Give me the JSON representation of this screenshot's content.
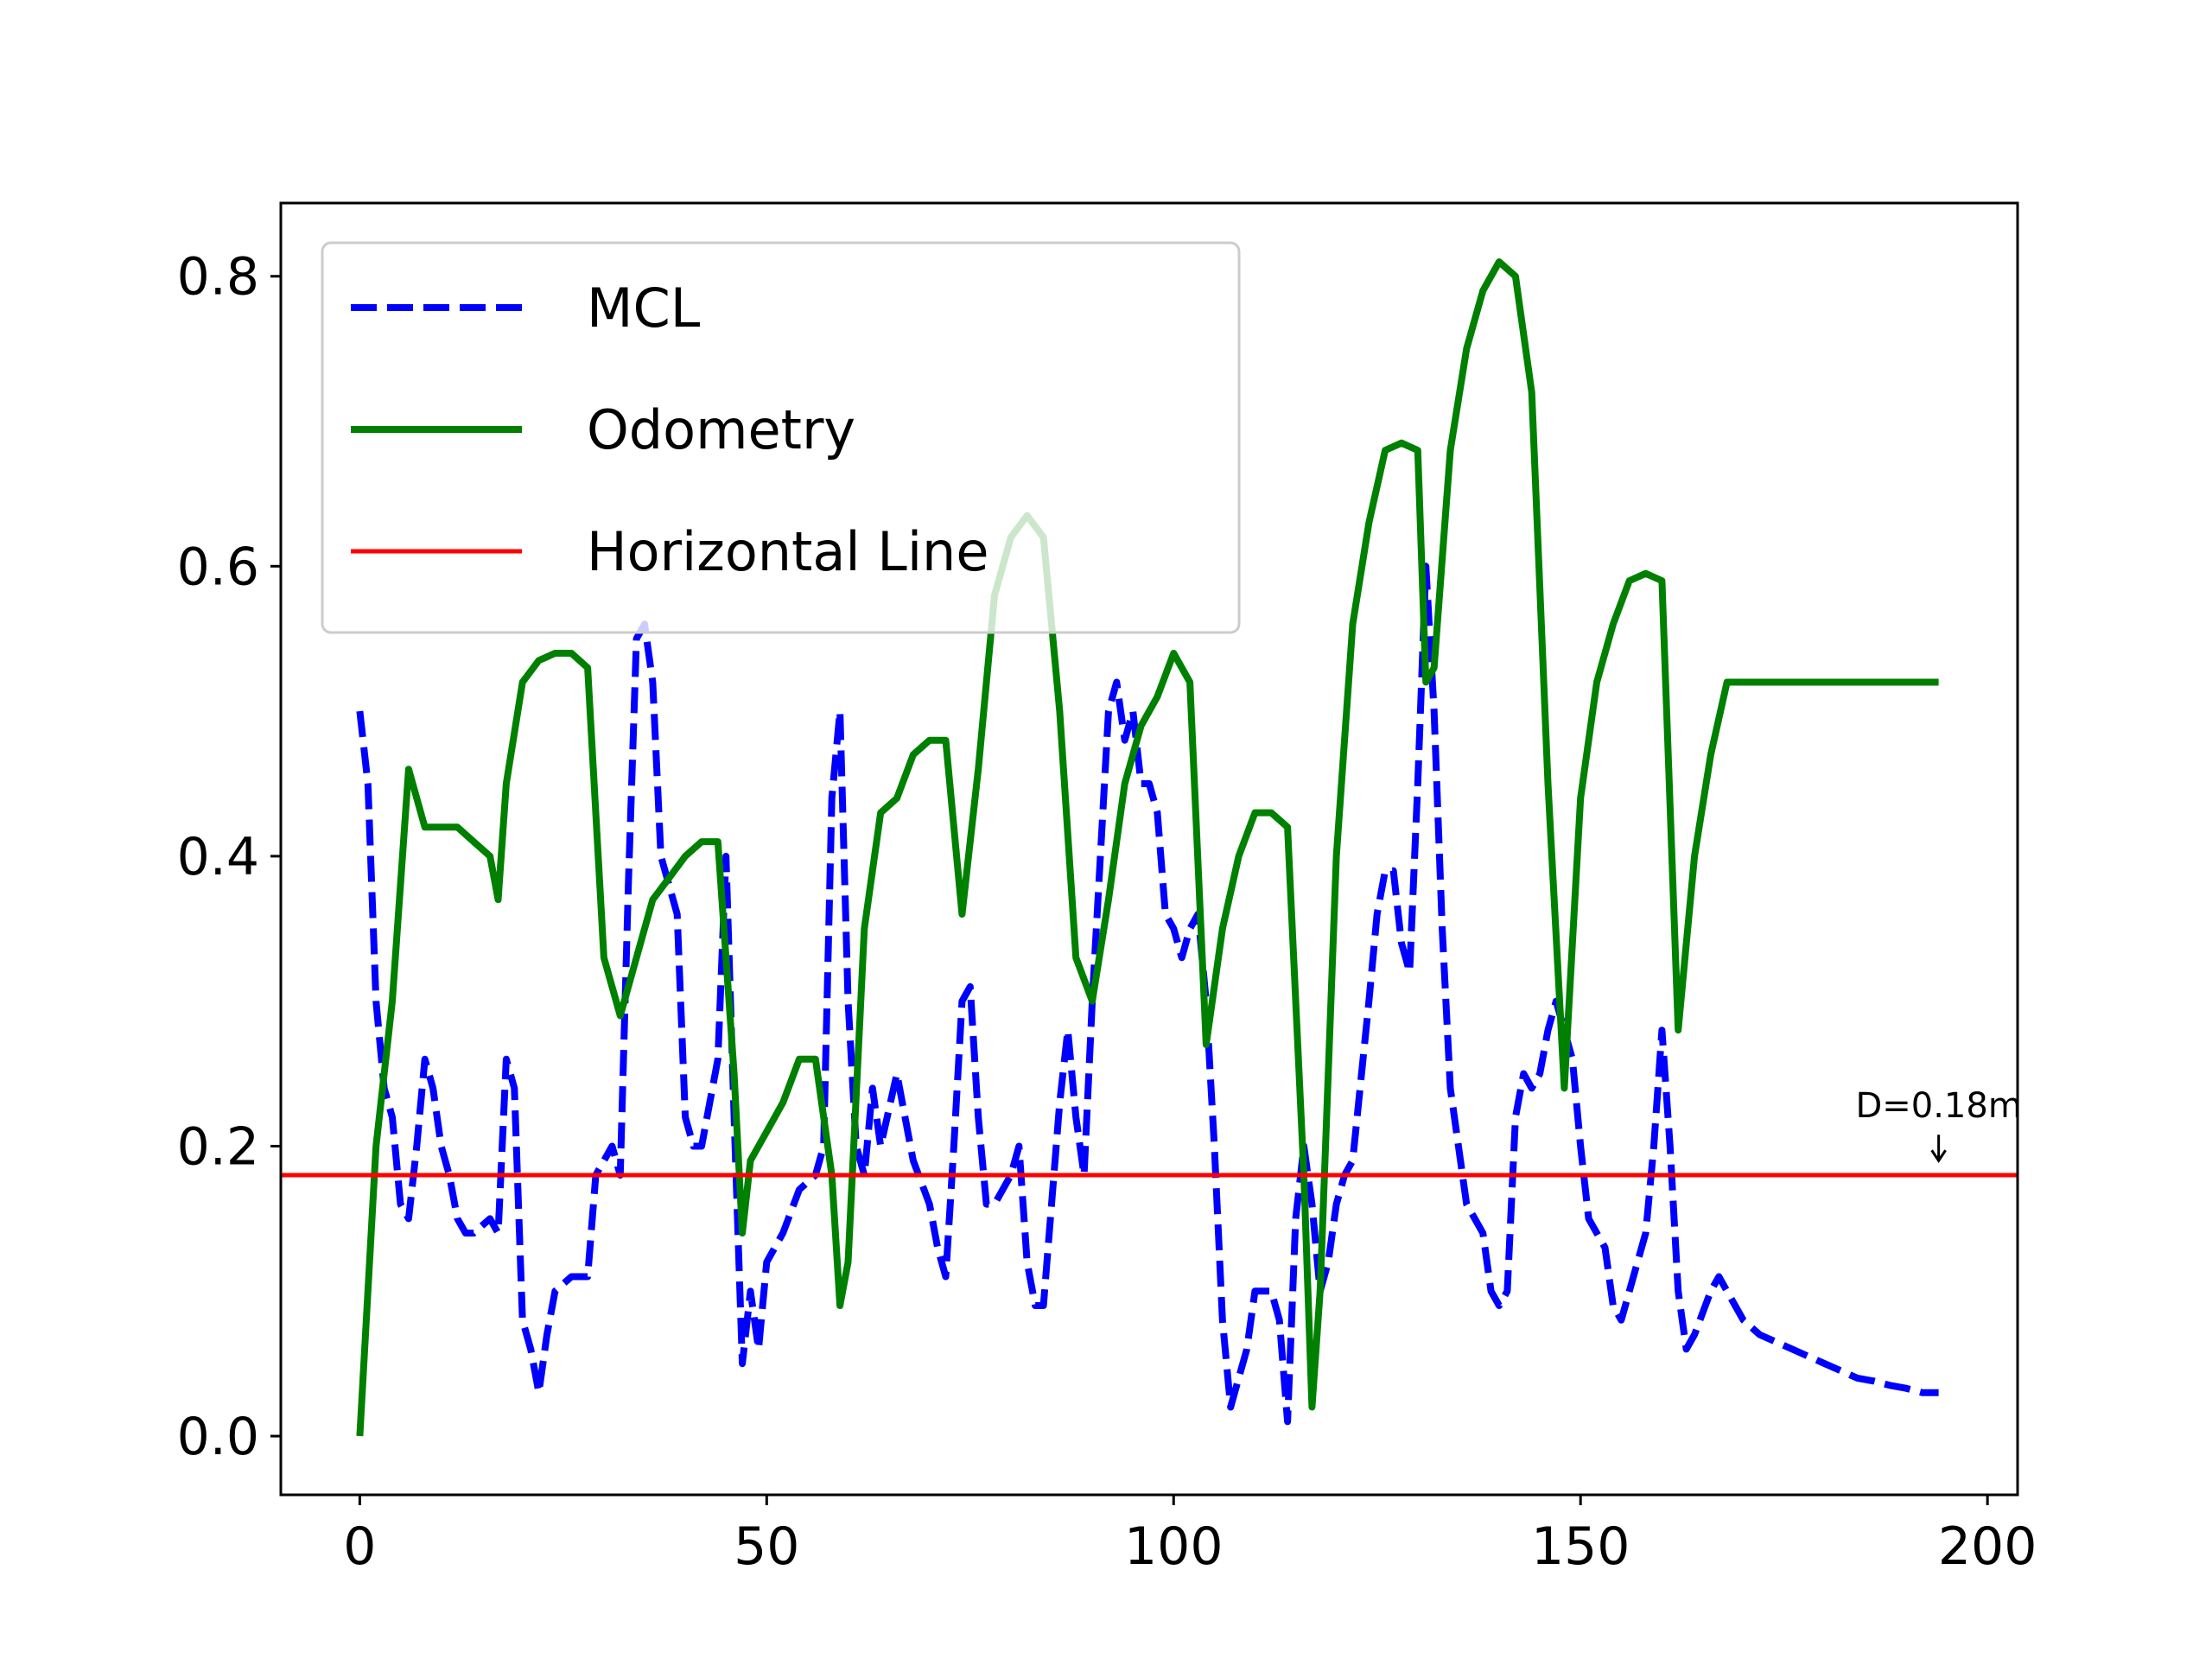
{
  "chart_data": {
    "type": "line",
    "xlim": [
      -9.7,
      203.7
    ],
    "xticks": [
      0,
      50,
      100,
      150,
      200
    ],
    "ylim": [
      -0.0405,
      0.8505
    ],
    "yticks": [
      {
        "value": 0,
        "label": "0.0"
      },
      0.2,
      0.4,
      0.6,
      0.8
    ],
    "legend": "upper left",
    "series": [
      {
        "name": "MCL",
        "color": "#0000ff",
        "style": "dashed",
        "x": [
          0,
          1,
          2,
          3,
          4,
          5,
          6,
          7,
          8,
          9,
          10,
          11,
          12,
          13,
          14,
          16,
          17,
          18,
          19,
          20,
          21,
          22,
          23,
          24,
          26,
          28,
          29,
          31,
          32,
          33,
          34,
          35,
          36,
          37,
          38,
          39,
          40,
          41,
          42,
          44,
          45,
          46,
          47,
          48,
          49,
          50,
          52,
          54,
          56,
          57,
          58,
          59,
          60,
          61,
          62,
          63,
          64,
          66,
          67,
          68,
          70,
          71,
          72,
          73,
          74,
          75,
          76,
          77,
          78,
          80,
          81,
          82,
          83,
          84,
          85,
          86,
          87,
          88,
          89,
          90,
          91,
          92,
          93,
          94,
          95,
          96,
          97,
          98,
          99,
          100,
          101,
          102,
          103,
          104,
          105,
          106,
          107,
          108,
          109,
          110,
          112,
          113,
          114,
          115,
          116,
          117,
          118,
          119,
          120,
          121,
          122,
          124,
          125,
          126,
          127,
          128,
          129,
          130,
          131,
          132,
          133,
          134,
          135,
          136,
          137,
          138,
          139,
          140,
          141,
          142,
          143,
          144,
          145,
          146,
          147,
          148,
          149,
          150,
          151,
          152,
          153,
          154,
          155,
          156,
          157,
          158,
          159,
          160,
          161,
          162,
          163,
          164,
          166,
          167,
          168,
          170,
          172,
          174,
          176,
          178,
          180,
          182,
          184,
          186,
          188,
          190,
          192,
          194
        ],
        "values": [
          0.5,
          0.45,
          0.3,
          0.24,
          0.22,
          0.16,
          0.15,
          0.2,
          0.26,
          0.24,
          0.2,
          0.18,
          0.15,
          0.14,
          0.14,
          0.15,
          0.14,
          0.26,
          0.24,
          0.08,
          0.06,
          0.03,
          0.07,
          0.1,
          0.11,
          0.11,
          0.18,
          0.2,
          0.18,
          0.38,
          0.55,
          0.56,
          0.52,
          0.4,
          0.38,
          0.36,
          0.22,
          0.2,
          0.2,
          0.26,
          0.4,
          0.22,
          0.05,
          0.1,
          0.06,
          0.12,
          0.14,
          0.17,
          0.18,
          0.2,
          0.44,
          0.5,
          0.3,
          0.2,
          0.18,
          0.24,
          0.2,
          0.25,
          0.22,
          0.19,
          0.16,
          0.13,
          0.11,
          0.2,
          0.3,
          0.31,
          0.22,
          0.16,
          0.16,
          0.18,
          0.2,
          0.12,
          0.09,
          0.09,
          0.16,
          0.23,
          0.28,
          0.22,
          0.18,
          0.3,
          0.4,
          0.5,
          0.52,
          0.48,
          0.5,
          0.45,
          0.45,
          0.43,
          0.36,
          0.35,
          0.33,
          0.35,
          0.36,
          0.3,
          0.2,
          0.08,
          0.02,
          0.04,
          0.06,
          0.1,
          0.1,
          0.08,
          0.01,
          0.15,
          0.2,
          0.16,
          0.1,
          0.12,
          0.16,
          0.18,
          0.19,
          0.3,
          0.36,
          0.39,
          0.39,
          0.34,
          0.32,
          0.45,
          0.6,
          0.5,
          0.35,
          0.24,
          0.2,
          0.16,
          0.15,
          0.14,
          0.1,
          0.09,
          0.1,
          0.22,
          0.25,
          0.24,
          0.25,
          0.28,
          0.3,
          0.28,
          0.26,
          0.2,
          0.15,
          0.14,
          0.13,
          0.09,
          0.08,
          0.1,
          0.12,
          0.14,
          0.2,
          0.28,
          0.2,
          0.1,
          0.06,
          0.07,
          0.1,
          0.11,
          0.1,
          0.08,
          0.07,
          0.065,
          0.06,
          0.055,
          0.05,
          0.045,
          0.04,
          0.038,
          0.035,
          0.033,
          0.03,
          0.03
        ]
      },
      {
        "name": "Odometry",
        "color": "#008000",
        "style": "solid",
        "x": [
          0,
          2,
          4,
          6,
          8,
          10,
          12,
          14,
          16,
          17,
          18,
          20,
          22,
          24,
          26,
          28,
          30,
          32,
          34,
          36,
          38,
          40,
          42,
          44,
          46,
          47,
          48,
          50,
          52,
          54,
          56,
          58,
          59,
          60,
          62,
          64,
          66,
          68,
          70,
          72,
          74,
          76,
          78,
          80,
          82,
          84,
          86,
          88,
          90,
          92,
          94,
          96,
          98,
          100,
          102,
          104,
          106,
          108,
          110,
          112,
          114,
          116,
          117,
          118,
          120,
          122,
          124,
          126,
          128,
          130,
          131,
          132,
          134,
          136,
          138,
          140,
          142,
          144,
          146,
          148,
          150,
          152,
          154,
          156,
          158,
          160,
          162,
          164,
          166,
          168,
          194
        ],
        "values": [
          0,
          0.2,
          0.3,
          0.46,
          0.42,
          0.42,
          0.42,
          0.41,
          0.4,
          0.37,
          0.45,
          0.52,
          0.535,
          0.54,
          0.54,
          0.53,
          0.33,
          0.29,
          0.33,
          0.37,
          0.385,
          0.4,
          0.41,
          0.41,
          0.25,
          0.14,
          0.19,
          0.21,
          0.23,
          0.26,
          0.26,
          0.18,
          0.09,
          0.12,
          0.35,
          0.43,
          0.44,
          0.47,
          0.48,
          0.48,
          0.36,
          0.46,
          0.58,
          0.62,
          0.635,
          0.62,
          0.5,
          0.33,
          0.3,
          0.37,
          0.45,
          0.49,
          0.51,
          0.54,
          0.52,
          0.27,
          0.35,
          0.4,
          0.43,
          0.43,
          0.42,
          0.18,
          0.02,
          0.1,
          0.4,
          0.56,
          0.63,
          0.68,
          0.685,
          0.68,
          0.52,
          0.53,
          0.68,
          0.75,
          0.79,
          0.81,
          0.8,
          0.72,
          0.45,
          0.24,
          0.44,
          0.52,
          0.56,
          0.59,
          0.595,
          0.59,
          0.28,
          0.4,
          0.47,
          0.52,
          0.52
        ]
      },
      {
        "name": "Horizontal Line",
        "color": "#ff0000",
        "style": "hline",
        "y": 0.18
      }
    ],
    "annotations": [
      {
        "text": "D=0.18m",
        "x": 194,
        "y": 0.19
      }
    ]
  }
}
